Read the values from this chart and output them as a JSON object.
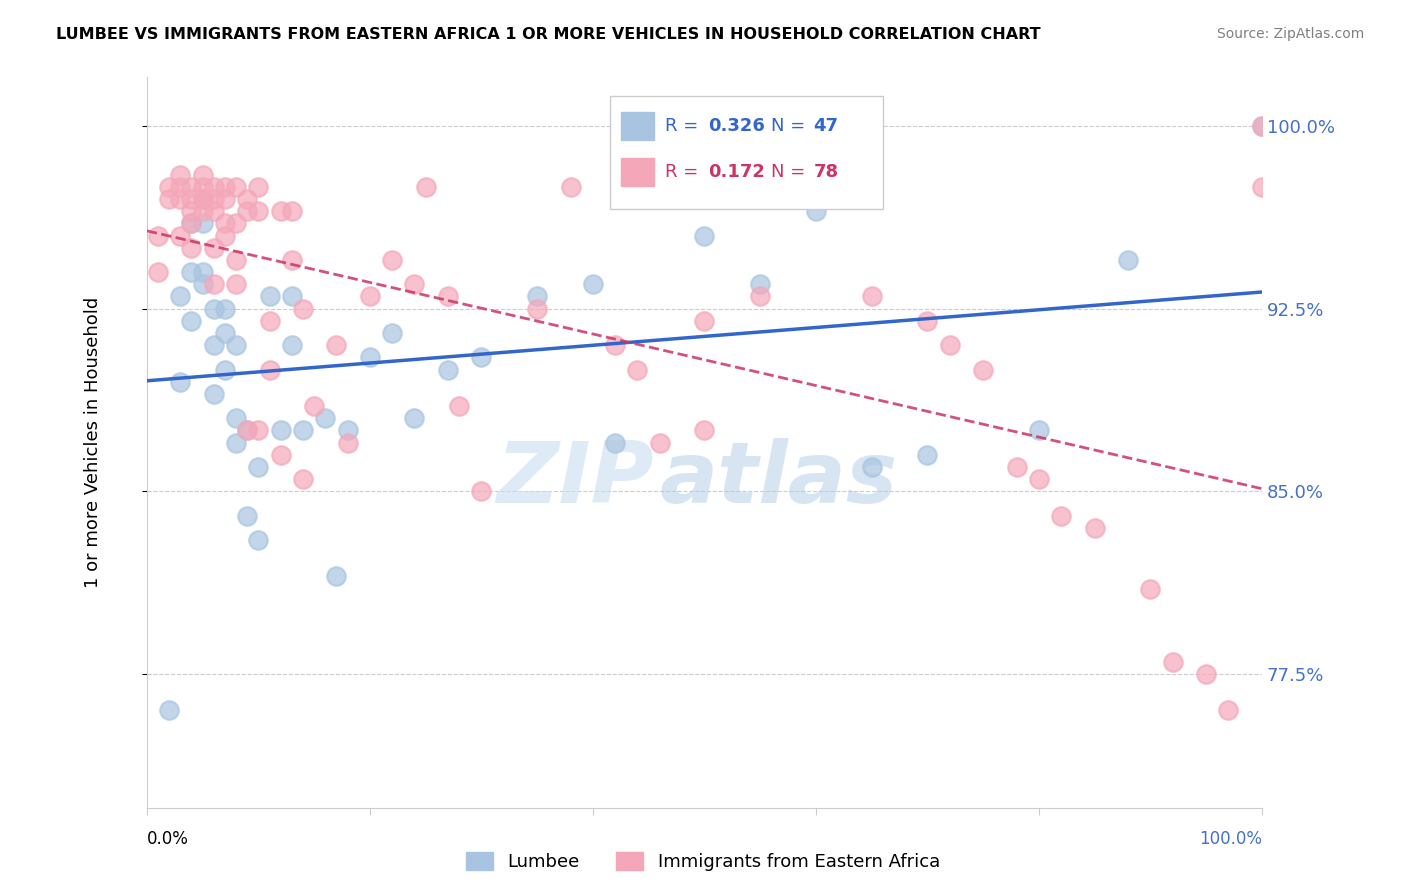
{
  "title": "LUMBEE VS IMMIGRANTS FROM EASTERN AFRICA 1 OR MORE VEHICLES IN HOUSEHOLD CORRELATION CHART",
  "source": "Source: ZipAtlas.com",
  "ylabel": "1 or more Vehicles in Household",
  "xlim": [
    0.0,
    1.0
  ],
  "ylim": [
    0.72,
    1.02
  ],
  "yticks": [
    0.775,
    0.85,
    0.925,
    1.0
  ],
  "ytick_labels": [
    "77.5%",
    "85.0%",
    "92.5%",
    "100.0%"
  ],
  "legend_blue_r": "0.326",
  "legend_blue_n": "47",
  "legend_pink_r": "0.172",
  "legend_pink_n": "78",
  "blue_color": "#a8c4e0",
  "pink_color": "#f4a7b9",
  "blue_line_color": "#3366cc",
  "pink_line_color": "#cc3366",
  "background_color": "#ffffff",
  "watermark_zip": "ZIP",
  "watermark_atlas": "atlas",
  "blue_scatter_x": [
    0.02,
    0.03,
    0.03,
    0.04,
    0.04,
    0.04,
    0.05,
    0.05,
    0.05,
    0.05,
    0.06,
    0.06,
    0.06,
    0.07,
    0.07,
    0.07,
    0.08,
    0.08,
    0.08,
    0.09,
    0.09,
    0.1,
    0.1,
    0.11,
    0.12,
    0.13,
    0.13,
    0.14,
    0.16,
    0.17,
    0.18,
    0.2,
    0.22,
    0.24,
    0.27,
    0.3,
    0.35,
    0.4,
    0.42,
    0.5,
    0.55,
    0.6,
    0.65,
    0.7,
    0.8,
    0.88,
    1.0
  ],
  "blue_scatter_y": [
    0.76,
    0.895,
    0.93,
    0.96,
    0.94,
    0.92,
    0.97,
    0.96,
    0.935,
    0.94,
    0.91,
    0.89,
    0.925,
    0.925,
    0.9,
    0.915,
    0.88,
    0.91,
    0.87,
    0.875,
    0.84,
    0.83,
    0.86,
    0.93,
    0.875,
    0.93,
    0.91,
    0.875,
    0.88,
    0.815,
    0.875,
    0.905,
    0.915,
    0.88,
    0.9,
    0.905,
    0.93,
    0.935,
    0.87,
    0.955,
    0.935,
    0.965,
    0.86,
    0.865,
    0.875,
    0.945,
    1.0
  ],
  "pink_scatter_x": [
    0.01,
    0.01,
    0.02,
    0.02,
    0.03,
    0.03,
    0.03,
    0.03,
    0.04,
    0.04,
    0.04,
    0.04,
    0.04,
    0.05,
    0.05,
    0.05,
    0.05,
    0.05,
    0.06,
    0.06,
    0.06,
    0.06,
    0.06,
    0.07,
    0.07,
    0.07,
    0.07,
    0.08,
    0.08,
    0.08,
    0.08,
    0.09,
    0.09,
    0.09,
    0.1,
    0.1,
    0.1,
    0.11,
    0.11,
    0.12,
    0.12,
    0.13,
    0.13,
    0.14,
    0.14,
    0.15,
    0.17,
    0.18,
    0.2,
    0.22,
    0.24,
    0.25,
    0.27,
    0.28,
    0.3,
    0.35,
    0.38,
    0.42,
    0.44,
    0.46,
    0.5,
    0.5,
    0.55,
    0.6,
    0.65,
    0.7,
    0.72,
    0.75,
    0.78,
    0.8,
    0.82,
    0.85,
    0.9,
    0.92,
    0.95,
    0.97,
    1.0,
    1.0
  ],
  "pink_scatter_y": [
    0.955,
    0.94,
    0.975,
    0.97,
    0.98,
    0.975,
    0.97,
    0.955,
    0.975,
    0.97,
    0.96,
    0.965,
    0.95,
    0.98,
    0.975,
    0.97,
    0.97,
    0.965,
    0.975,
    0.97,
    0.965,
    0.95,
    0.935,
    0.975,
    0.97,
    0.96,
    0.955,
    0.975,
    0.96,
    0.945,
    0.935,
    0.97,
    0.965,
    0.875,
    0.975,
    0.965,
    0.875,
    0.92,
    0.9,
    0.965,
    0.865,
    0.965,
    0.945,
    0.925,
    0.855,
    0.885,
    0.91,
    0.87,
    0.93,
    0.945,
    0.935,
    0.975,
    0.93,
    0.885,
    0.85,
    0.925,
    0.975,
    0.91,
    0.9,
    0.87,
    0.92,
    0.875,
    0.93,
    0.975,
    0.93,
    0.92,
    0.91,
    0.9,
    0.86,
    0.855,
    0.84,
    0.835,
    0.81,
    0.78,
    0.775,
    0.76,
    0.975,
    1.0
  ]
}
